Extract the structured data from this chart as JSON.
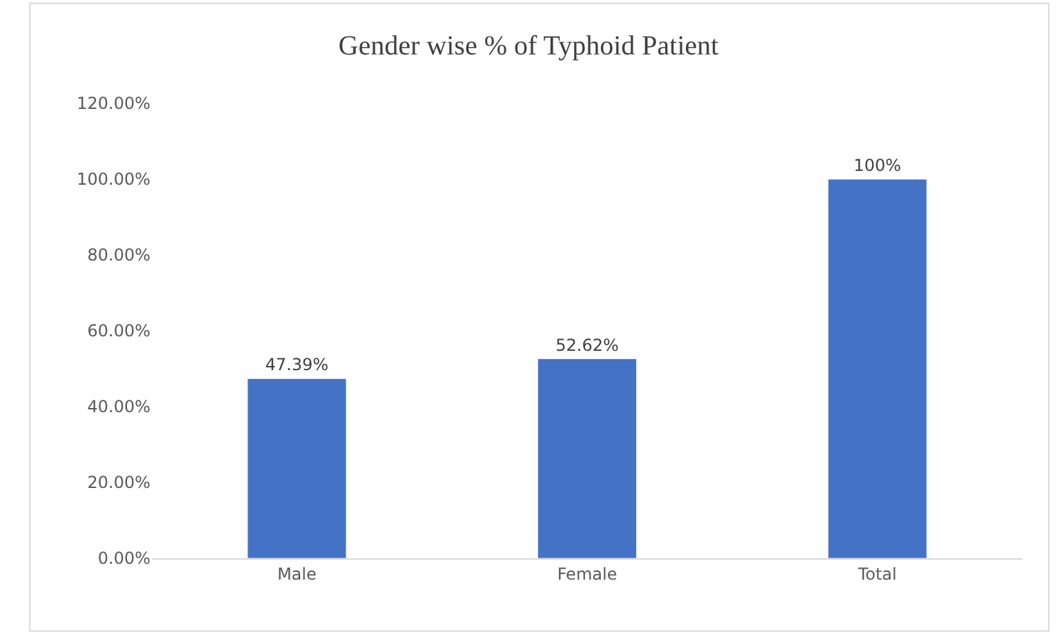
{
  "chart_data": {
    "type": "bar",
    "title": "Gender wise % of Typhoid Patient",
    "categories": [
      "Male",
      "Female",
      "Total"
    ],
    "values": [
      47.39,
      52.62,
      100
    ],
    "value_labels": [
      "47.39%",
      "52.62%",
      "100%"
    ],
    "color": "#4472c4",
    "ylim": [
      0,
      120
    ],
    "yticks": [
      {
        "value": 0,
        "label": "0.00%"
      },
      {
        "value": 20,
        "label": "20.00%"
      },
      {
        "value": 40,
        "label": "40.00%"
      },
      {
        "value": 60,
        "label": "60.00%"
      },
      {
        "value": 80,
        "label": "80.00%"
      },
      {
        "value": 100,
        "label": "100.00%"
      },
      {
        "value": 120,
        "label": "120.00%"
      }
    ],
    "grid": false,
    "legend": false
  }
}
